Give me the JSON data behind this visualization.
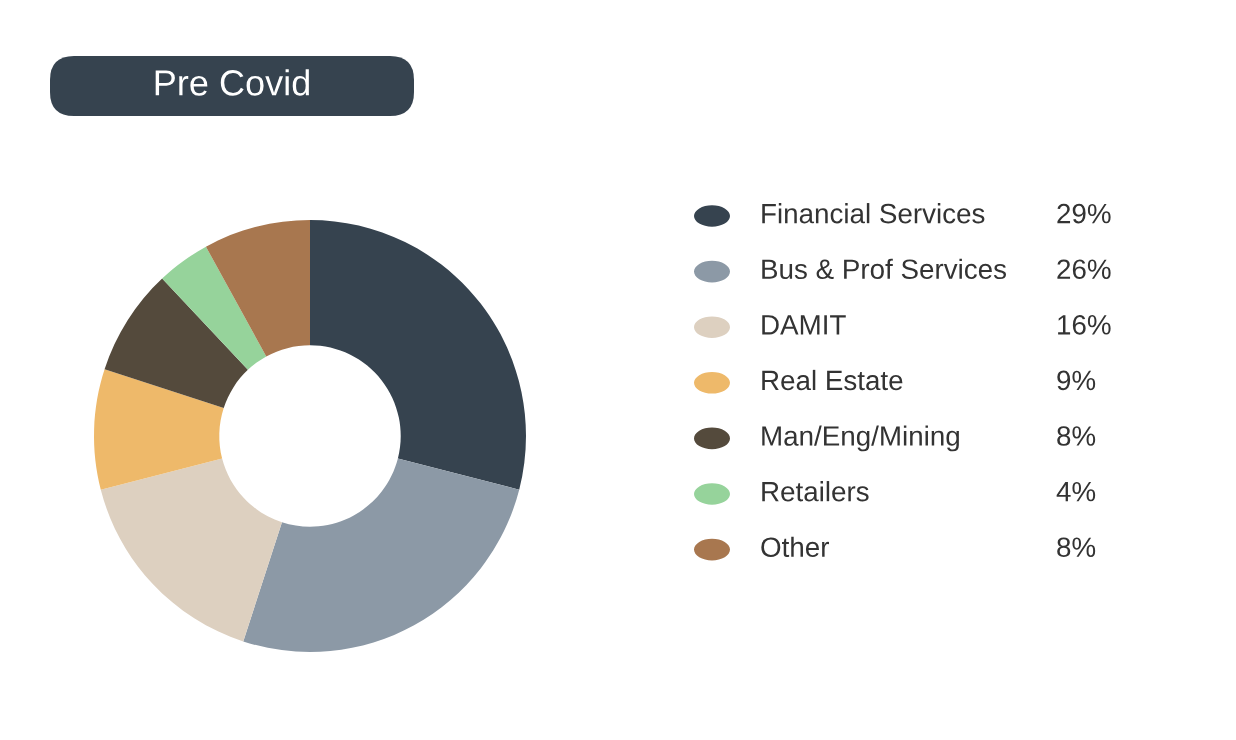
{
  "chart_data": {
    "type": "donut",
    "title": "Pre Covid",
    "categories": [
      "Financial Services",
      "Bus & Prof Services",
      "DAMIT",
      "Real Estate",
      "Man/Eng/Mining",
      "Retailers",
      "Other"
    ],
    "values": [
      29,
      26,
      16,
      9,
      8,
      4,
      8
    ],
    "colors": [
      "#36434f",
      "#8c99a6",
      "#ddd0c0",
      "#eeb96a",
      "#544a3c",
      "#96d39b",
      "#a8774f"
    ],
    "value_labels": [
      "29%",
      "26%",
      "16%",
      "9%",
      "8%",
      "4%",
      "8%"
    ],
    "legend": "right"
  }
}
